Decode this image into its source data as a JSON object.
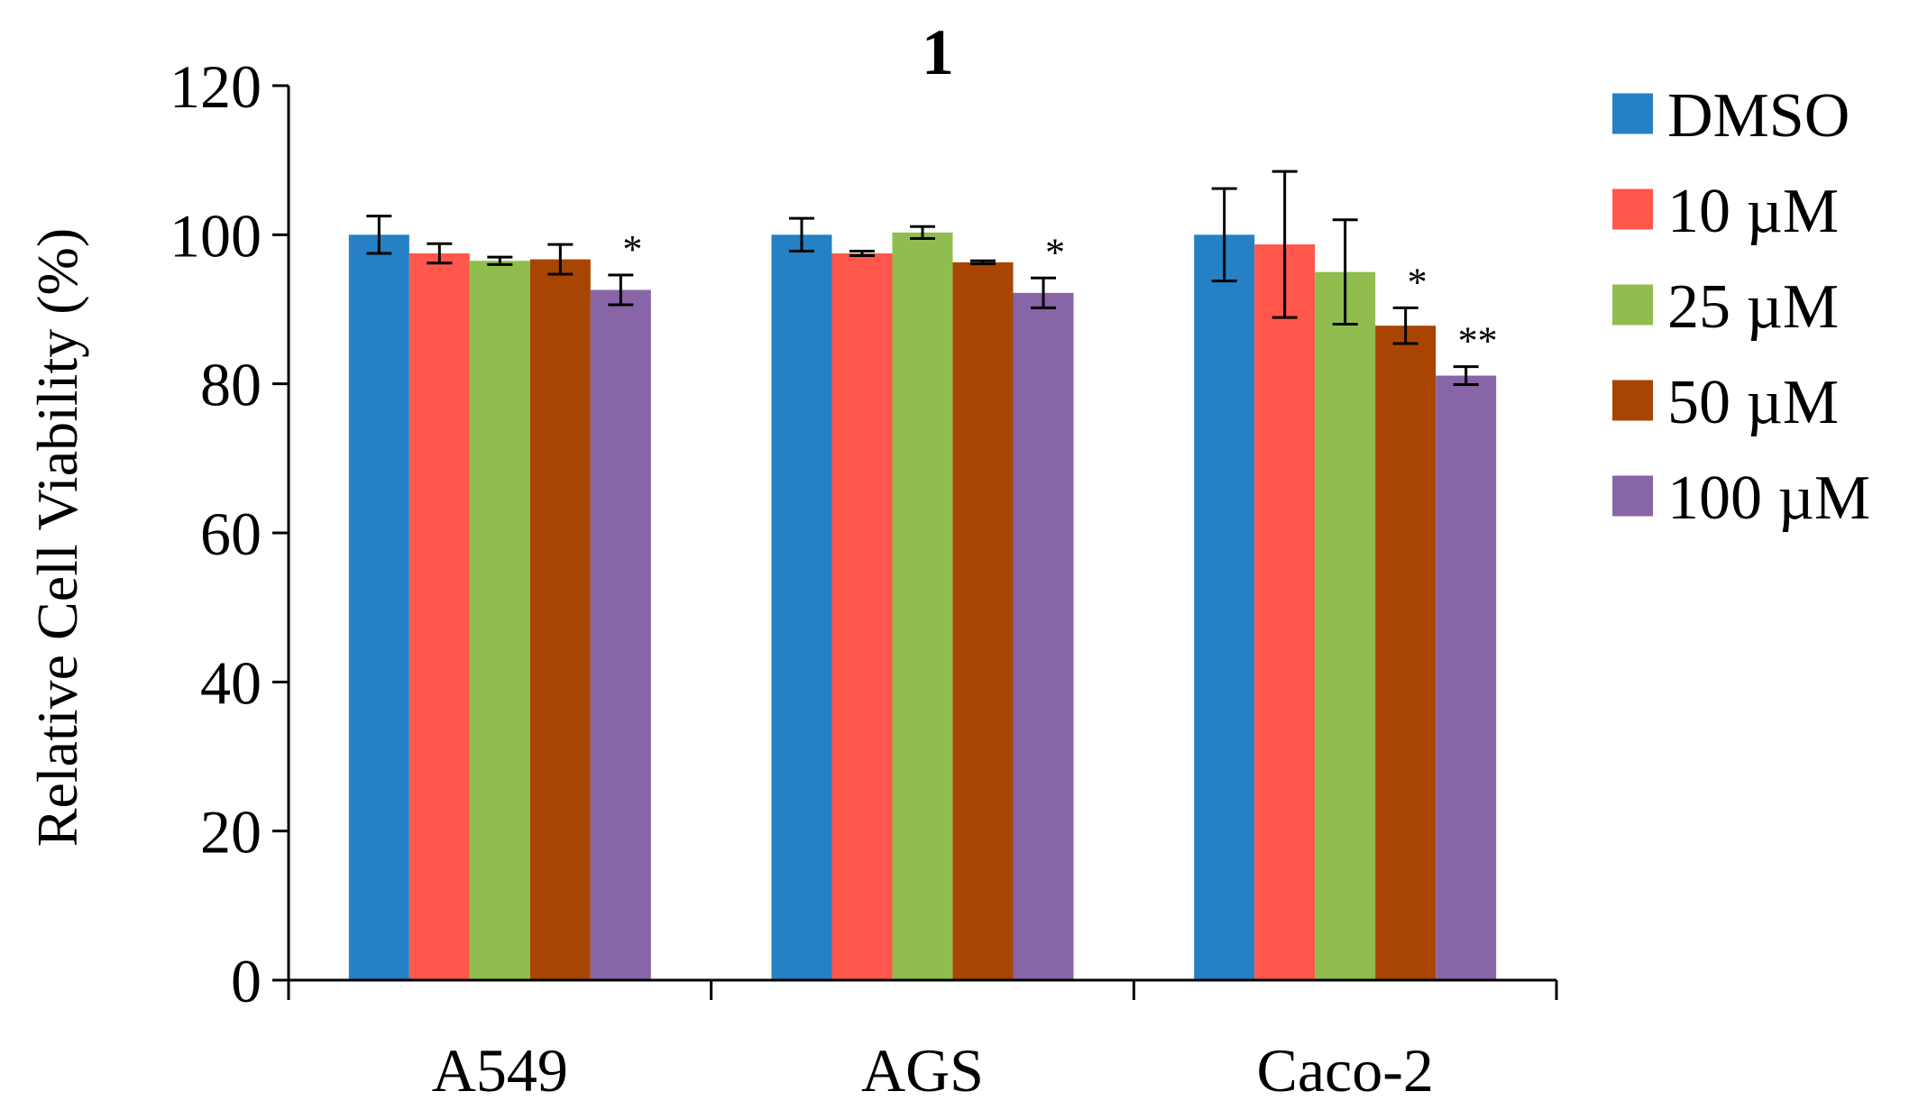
{
  "chart_data": {
    "type": "bar",
    "title": "1",
    "xlabel": "",
    "ylabel": "Relative Cell Viability (%)",
    "ylim": [
      0,
      120
    ],
    "yticks": [
      0,
      20,
      40,
      60,
      80,
      100,
      120
    ],
    "grid": false,
    "legend_position": "right",
    "categories": [
      "A549",
      "AGS",
      "Caco-2"
    ],
    "series": [
      {
        "name": "DMSO",
        "color": "#2581c4",
        "values": [
          100,
          100,
          100
        ],
        "errors": [
          2.5,
          2.2,
          6.2
        ],
        "annotations": [
          "",
          "",
          ""
        ]
      },
      {
        "name": "10 µM",
        "color": "#ff574b",
        "values": [
          97.5,
          97.5,
          98.7
        ],
        "errors": [
          1.3,
          0.3,
          9.8
        ],
        "annotations": [
          "",
          "",
          ""
        ]
      },
      {
        "name": "25 µM",
        "color": "#8fbd4e",
        "values": [
          96.5,
          100.3,
          95
        ],
        "errors": [
          0.5,
          0.8,
          7
        ],
        "annotations": [
          "",
          "",
          ""
        ]
      },
      {
        "name": "50 µM",
        "color": "#a94502",
        "values": [
          96.7,
          96.3,
          87.8
        ],
        "errors": [
          2,
          0.2,
          2.4
        ],
        "annotations": [
          "",
          "",
          "*"
        ]
      },
      {
        "name": "100 µM",
        "color": "#8865a6",
        "values": [
          92.6,
          92.2,
          81.1
        ],
        "errors": [
          2,
          2,
          1.2
        ],
        "annotations": [
          "*",
          "*",
          "**"
        ]
      }
    ]
  }
}
